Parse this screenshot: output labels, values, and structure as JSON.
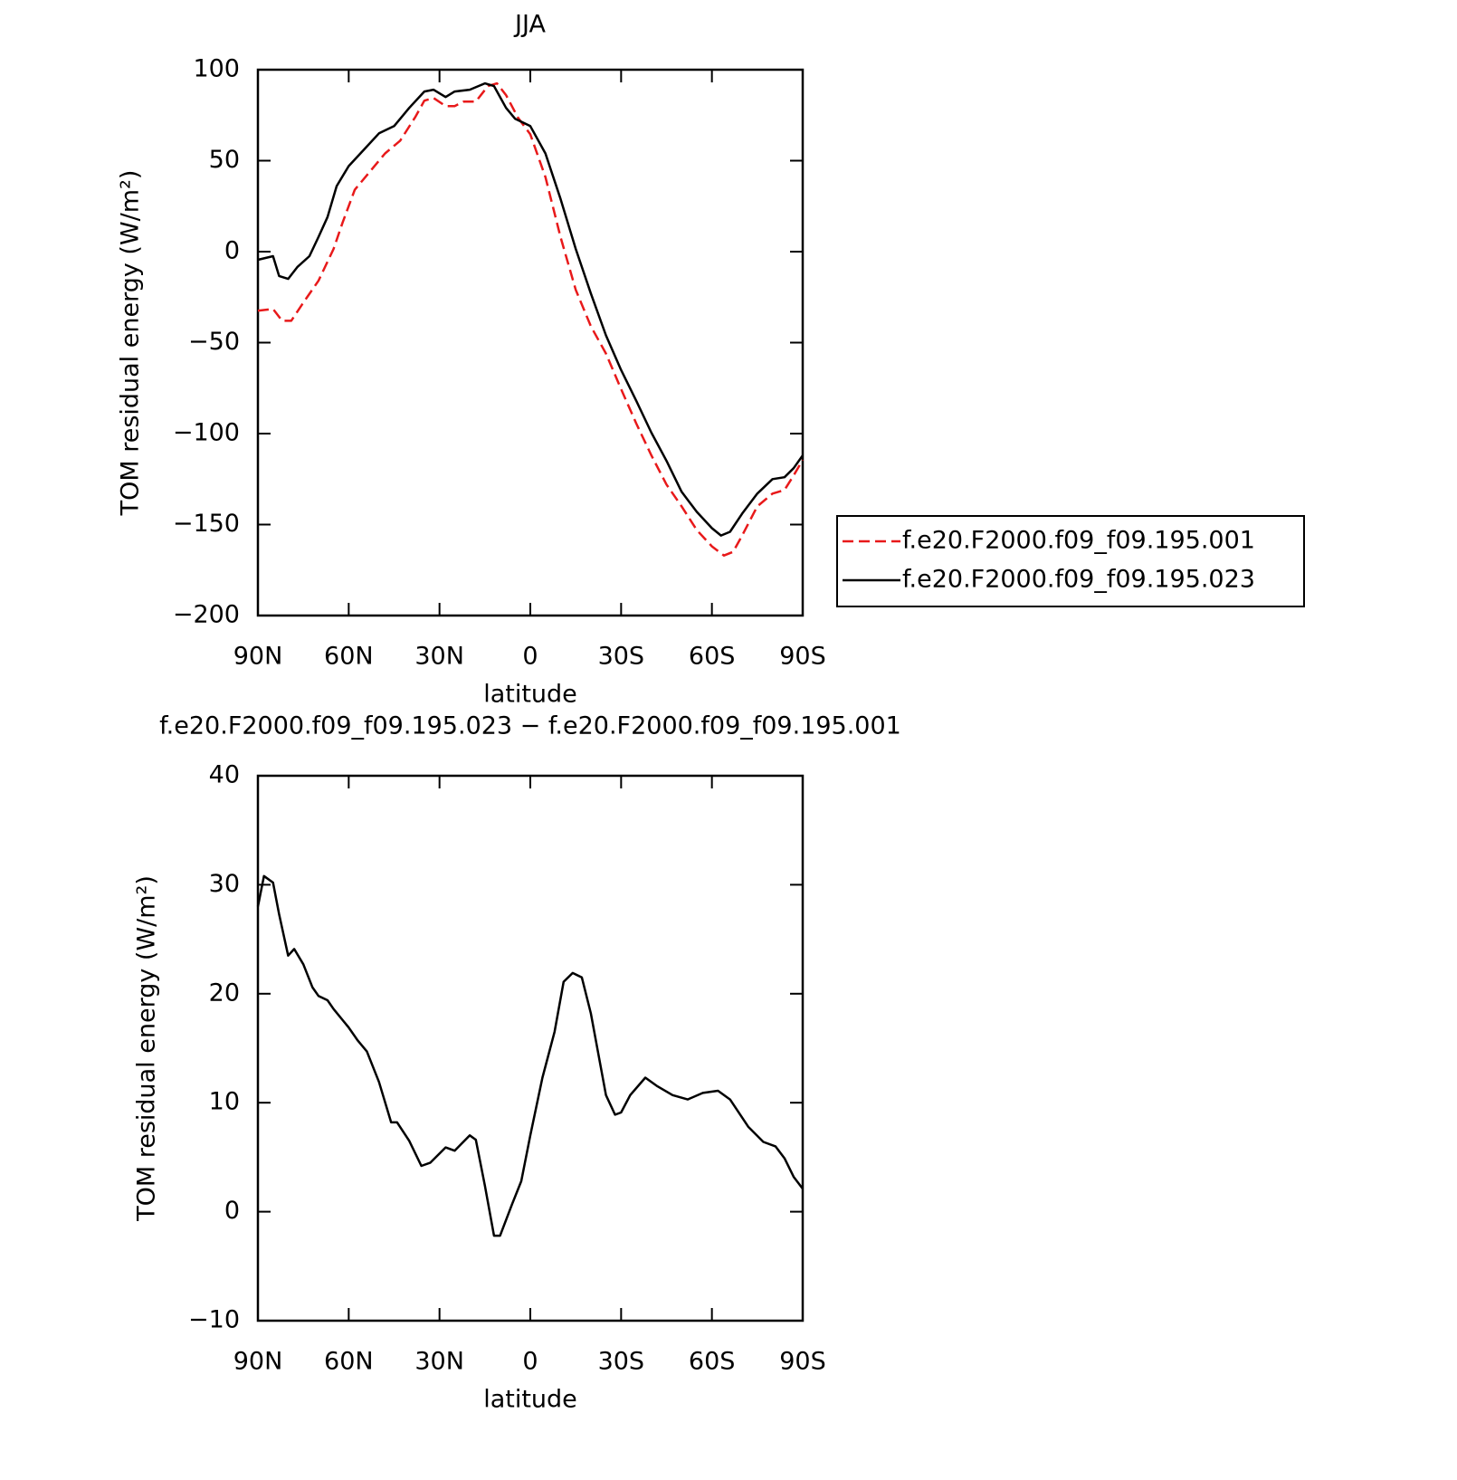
{
  "chart_data": [
    {
      "type": "line",
      "title": "JJA",
      "xlabel": "latitude",
      "ylabel": "TOM residual energy (W/m²)",
      "xlim": [
        90,
        -90
      ],
      "ylim": [
        100,
        -200
      ],
      "xticks": [
        {
          "value": 90,
          "label": "90N"
        },
        {
          "value": 60,
          "label": "60N"
        },
        {
          "value": 30,
          "label": "30N"
        },
        0,
        {
          "value": -30,
          "label": "30S"
        },
        {
          "value": -60,
          "label": "60S"
        },
        {
          "value": -90,
          "label": "90S"
        }
      ],
      "yticks": [
        100,
        50,
        0,
        {
          "value": -50,
          "label": "−50"
        },
        {
          "value": -100,
          "label": "−100"
        },
        {
          "value": -150,
          "label": "−150"
        },
        {
          "value": -200,
          "label": "−200"
        }
      ],
      "legend": "right",
      "series": [
        {
          "name": "f.e20.F2000.f09_f09.195.001",
          "color": "#e8191a",
          "line_style": "dashed",
          "x": [
            90,
            85,
            82,
            79,
            75,
            70,
            65,
            62,
            58,
            53,
            48,
            43,
            38,
            35,
            32,
            28,
            25,
            22,
            18,
            14,
            11,
            8,
            4,
            0,
            -5,
            -10,
            -15,
            -20,
            -25,
            -30,
            -35,
            -40,
            -45,
            -50,
            -55,
            -60,
            -64,
            -67,
            -70,
            -75,
            -80,
            -84,
            -87,
            -90
          ],
          "values": [
            -32.5,
            -31.5,
            -38,
            -38,
            -28,
            -16,
            1.5,
            16,
            34,
            44,
            54,
            61,
            74,
            83,
            84.5,
            80,
            80,
            82.5,
            82.5,
            91,
            92.5,
            86,
            73.5,
            64.5,
            41,
            8,
            -21,
            -41,
            -56,
            -75.5,
            -94.5,
            -112,
            -128,
            -140,
            -153,
            -162,
            -167,
            -165,
            -156,
            -140,
            -133,
            -131,
            -123,
            -114.5
          ]
        },
        {
          "name": "f.e20.F2000.f09_f09.195.023",
          "color": "#000000",
          "line_style": "solid",
          "x": [
            90,
            85,
            83,
            80,
            77,
            73,
            70,
            67,
            64,
            60,
            55,
            50,
            45,
            40,
            35,
            32,
            28,
            25,
            20,
            15,
            12,
            8,
            5,
            0,
            -5,
            -10,
            -15,
            -20,
            -25,
            -30,
            -35,
            -40,
            -45,
            -50,
            -55,
            -60,
            -63,
            -66,
            -70,
            -75,
            -80,
            -84,
            -87,
            -90
          ],
          "values": [
            -4.5,
            -2.5,
            -13.4,
            -15,
            -8.5,
            -2.5,
            8,
            19,
            36,
            47,
            56,
            65,
            69,
            79,
            88,
            89,
            85,
            88,
            89,
            92.5,
            91,
            79,
            73,
            69,
            54,
            29,
            1.5,
            -23,
            -46,
            -65,
            -82,
            -99.5,
            -115,
            -132,
            -143,
            -152,
            -156,
            -154,
            -144,
            -133,
            -125,
            -124,
            -119,
            -112
          ]
        }
      ]
    },
    {
      "type": "line",
      "title": "f.e20.F2000.f09_f09.195.023 − f.e20.F2000.f09_f09.195.001",
      "xlabel": "latitude",
      "ylabel": "TOM residual energy (W/m²)",
      "xlim": [
        90,
        -90
      ],
      "ylim": [
        40,
        -10
      ],
      "xticks": [
        {
          "value": 90,
          "label": "90N"
        },
        {
          "value": 60,
          "label": "60N"
        },
        {
          "value": 30,
          "label": "30N"
        },
        0,
        {
          "value": -30,
          "label": "30S"
        },
        {
          "value": -60,
          "label": "60S"
        },
        {
          "value": -90,
          "label": "90S"
        }
      ],
      "yticks": [
        40,
        30,
        20,
        10,
        0,
        {
          "value": -10,
          "label": "−10"
        }
      ],
      "series": [
        {
          "color": "#000000",
          "line_style": "solid",
          "x": [
            90,
            88,
            85,
            83,
            80,
            78,
            75,
            72,
            70,
            67,
            65,
            60,
            57,
            54,
            50,
            46,
            44,
            40,
            36,
            33,
            28,
            25,
            20,
            18,
            15,
            12,
            10,
            6,
            3,
            0,
            -4,
            -8,
            -11,
            -14,
            -17,
            -20,
            -25,
            -28,
            -30,
            -33,
            -38,
            -42,
            -47,
            -52,
            -57,
            -62,
            -66,
            -72,
            -77,
            -81,
            -84,
            -87,
            -90
          ],
          "values": [
            28,
            30.8,
            30.2,
            27.3,
            23.5,
            24.1,
            22.7,
            20.6,
            19.8,
            19.4,
            18.6,
            16.9,
            15.7,
            14.7,
            11.9,
            8.2,
            8.2,
            6.5,
            4.2,
            4.5,
            5.9,
            5.6,
            7.0,
            6.6,
            2.4,
            -2.2,
            -2.2,
            0.7,
            2.8,
            7.0,
            12.3,
            16.5,
            21.1,
            21.9,
            21.5,
            18.2,
            10.7,
            8.9,
            9.1,
            10.7,
            12.3,
            11.5,
            10.7,
            10.3,
            10.9,
            11.1,
            10.3,
            7.8,
            6.4,
            6.0,
            4.9,
            3.2,
            2.1
          ]
        }
      ]
    }
  ]
}
